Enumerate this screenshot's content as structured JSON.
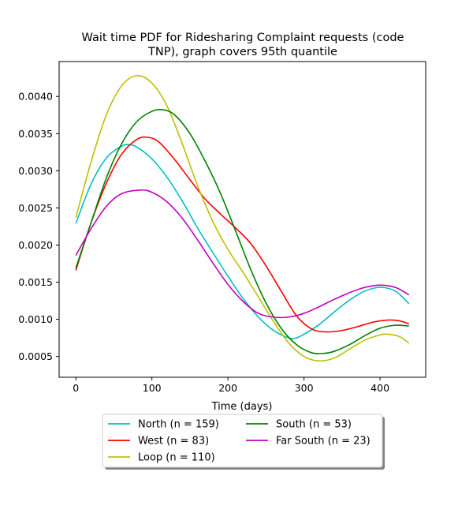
{
  "chart_data": {
    "type": "line",
    "title_line1": "Wait time PDF for Ridesharing Complaint  requests (code",
    "title_line2": "TNP), graph covers 95th quantile",
    "xlabel": "Time (days)",
    "ylabel": "",
    "xlim": [
      -22,
      460
    ],
    "ylim": [
      0.00022,
      0.00447
    ],
    "xticks": [
      0,
      100,
      200,
      300,
      400
    ],
    "xtick_labels": [
      "0",
      "100",
      "200",
      "300",
      "400"
    ],
    "yticks": [
      0.0005,
      0.001,
      0.0015,
      0.002,
      0.0025,
      0.003,
      0.0035,
      0.004
    ],
    "ytick_labels": [
      "0.0005",
      "0.0010",
      "0.0015",
      "0.0020",
      "0.0025",
      "0.0030",
      "0.0035",
      "0.0040"
    ],
    "grid": false,
    "legend_position": "below-center",
    "legend_columns": 2,
    "series": [
      {
        "name": "North (n = 159)",
        "color": "#00bfbf",
        "points": [
          [
            0,
            0.00229
          ],
          [
            20,
            0.00282
          ],
          [
            40,
            0.00317
          ],
          [
            60,
            0.00333
          ],
          [
            70,
            0.00335
          ],
          [
            80,
            0.00332
          ],
          [
            100,
            0.00316
          ],
          [
            120,
            0.00291
          ],
          [
            140,
            0.00259
          ],
          [
            160,
            0.00223
          ],
          [
            180,
            0.0019
          ],
          [
            200,
            0.00158
          ],
          [
            220,
            0.00128
          ],
          [
            240,
            0.00103
          ],
          [
            260,
            0.00085
          ],
          [
            280,
            0.00075
          ],
          [
            290,
            0.00075
          ],
          [
            300,
            0.0008
          ],
          [
            320,
            0.00093
          ],
          [
            340,
            0.0011
          ],
          [
            360,
            0.00126
          ],
          [
            380,
            0.00138
          ],
          [
            400,
            0.00143
          ],
          [
            420,
            0.00138
          ],
          [
            438,
            0.00121
          ]
        ]
      },
      {
        "name": "West (n = 83)",
        "color": "#ff0000",
        "points": [
          [
            0,
            0.00166
          ],
          [
            20,
            0.0023
          ],
          [
            40,
            0.00283
          ],
          [
            60,
            0.00322
          ],
          [
            80,
            0.00342
          ],
          [
            95,
            0.00345
          ],
          [
            110,
            0.00338
          ],
          [
            130,
            0.00315
          ],
          [
            150,
            0.00288
          ],
          [
            170,
            0.00262
          ],
          [
            190,
            0.00242
          ],
          [
            210,
            0.00223
          ],
          [
            230,
            0.00202
          ],
          [
            250,
            0.00172
          ],
          [
            270,
            0.00138
          ],
          [
            290,
            0.00105
          ],
          [
            310,
            0.00087
          ],
          [
            330,
            0.00083
          ],
          [
            350,
            0.00085
          ],
          [
            370,
            0.0009
          ],
          [
            390,
            0.00096
          ],
          [
            410,
            0.00099
          ],
          [
            425,
            0.00098
          ],
          [
            438,
            0.00094
          ]
        ]
      },
      {
        "name": "Loop (n = 110)",
        "color": "#bfbf00",
        "points": [
          [
            0,
            0.00237
          ],
          [
            20,
            0.00312
          ],
          [
            40,
            0.00375
          ],
          [
            60,
            0.00414
          ],
          [
            80,
            0.00428
          ],
          [
            100,
            0.00418
          ],
          [
            120,
            0.00387
          ],
          [
            140,
            0.00336
          ],
          [
            160,
            0.0028
          ],
          [
            180,
            0.00232
          ],
          [
            200,
            0.00194
          ],
          [
            220,
            0.00163
          ],
          [
            240,
            0.0013
          ],
          [
            260,
            0.00097
          ],
          [
            280,
            0.00068
          ],
          [
            300,
            0.0005
          ],
          [
            320,
            0.00044
          ],
          [
            340,
            0.00048
          ],
          [
            360,
            0.0006
          ],
          [
            380,
            0.00072
          ],
          [
            400,
            0.00079
          ],
          [
            410,
            0.0008
          ],
          [
            425,
            0.00077
          ],
          [
            438,
            0.00068
          ]
        ]
      },
      {
        "name": "South (n = 53)",
        "color": "#008000",
        "points": [
          [
            0,
            0.00169
          ],
          [
            20,
            0.0023
          ],
          [
            40,
            0.0029
          ],
          [
            60,
            0.00336
          ],
          [
            80,
            0.00366
          ],
          [
            100,
            0.0038
          ],
          [
            115,
            0.00382
          ],
          [
            130,
            0.00375
          ],
          [
            150,
            0.0035
          ],
          [
            170,
            0.00313
          ],
          [
            190,
            0.0027
          ],
          [
            210,
            0.00219
          ],
          [
            230,
            0.00167
          ],
          [
            250,
            0.00122
          ],
          [
            270,
            0.00088
          ],
          [
            290,
            0.00066
          ],
          [
            310,
            0.00055
          ],
          [
            325,
            0.00054
          ],
          [
            340,
            0.00057
          ],
          [
            360,
            0.00066
          ],
          [
            380,
            0.00078
          ],
          [
            400,
            0.00088
          ],
          [
            420,
            0.00092
          ],
          [
            438,
            0.00091
          ]
        ]
      },
      {
        "name": "Far South (n = 23)",
        "color": "#bf00bf",
        "points": [
          [
            0,
            0.00186
          ],
          [
            20,
            0.00222
          ],
          [
            40,
            0.00252
          ],
          [
            60,
            0.00269
          ],
          [
            85,
            0.00274
          ],
          [
            100,
            0.00271
          ],
          [
            120,
            0.00258
          ],
          [
            140,
            0.00236
          ],
          [
            160,
            0.00207
          ],
          [
            180,
            0.00176
          ],
          [
            200,
            0.00147
          ],
          [
            220,
            0.00124
          ],
          [
            240,
            0.00108
          ],
          [
            260,
            0.00103
          ],
          [
            280,
            0.00103
          ],
          [
            300,
            0.00108
          ],
          [
            320,
            0.00117
          ],
          [
            340,
            0.00127
          ],
          [
            360,
            0.00136
          ],
          [
            380,
            0.00143
          ],
          [
            400,
            0.00146
          ],
          [
            420,
            0.00143
          ],
          [
            438,
            0.00133
          ]
        ]
      }
    ]
  }
}
